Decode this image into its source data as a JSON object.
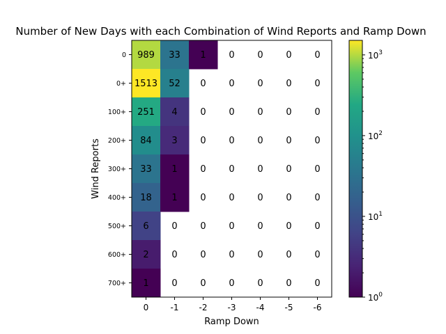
{
  "chart_data": {
    "type": "heatmap",
    "title": "Number of New Days with each Combination of Wind Reports and Ramp Down",
    "xlabel": "Ramp Down",
    "ylabel": "Wind Reports",
    "x_categories": [
      "0",
      "-1",
      "-2",
      "-3",
      "-4",
      "-5",
      "-6"
    ],
    "y_categories": [
      "0",
      "0+",
      "100+",
      "200+",
      "300+",
      "400+",
      "500+",
      "600+",
      "700+"
    ],
    "values": [
      [
        989,
        33,
        1,
        0,
        0,
        0,
        0
      ],
      [
        1513,
        52,
        0,
        0,
        0,
        0,
        0
      ],
      [
        251,
        4,
        0,
        0,
        0,
        0,
        0
      ],
      [
        84,
        3,
        0,
        0,
        0,
        0,
        0
      ],
      [
        33,
        1,
        0,
        0,
        0,
        0,
        0
      ],
      [
        18,
        1,
        0,
        0,
        0,
        0,
        0
      ],
      [
        6,
        0,
        0,
        0,
        0,
        0,
        0
      ],
      [
        2,
        0,
        0,
        0,
        0,
        0,
        0
      ],
      [
        1,
        0,
        0,
        0,
        0,
        0,
        0
      ]
    ],
    "colorbar": {
      "scale": "log",
      "range": [
        1,
        1513
      ],
      "colormap": "viridis",
      "ticks": [
        {
          "value": 1,
          "base": "10",
          "exp": "0"
        },
        {
          "value": 10,
          "base": "10",
          "exp": "1"
        },
        {
          "value": 100,
          "base": "10",
          "exp": "2"
        },
        {
          "value": 1000,
          "base": "10",
          "exp": "3"
        }
      ]
    },
    "zero_cells": "blank",
    "grid": false
  }
}
